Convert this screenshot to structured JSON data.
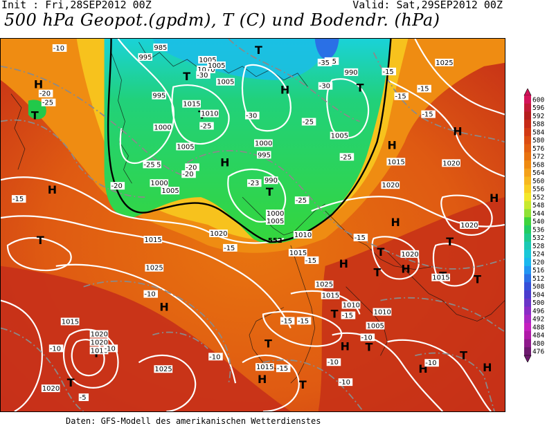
{
  "header": {
    "init": "Init : Fri,28SEP2012 00Z",
    "valid": "Valid: Sat,29SEP2012 00Z",
    "title": "500 hPa Geopot.(gpdm), T (C) und Bodendr. (hPa)"
  },
  "footer": {
    "credit": "Daten: GFS-Modell des amerikanischen Wetterdienstes"
  },
  "legend": {
    "levels": [
      "600",
      "596",
      "592",
      "588",
      "584",
      "580",
      "576",
      "572",
      "568",
      "564",
      "560",
      "556",
      "552",
      "548",
      "544",
      "540",
      "536",
      "532",
      "528",
      "524",
      "520",
      "516",
      "512",
      "508",
      "504",
      "500",
      "496",
      "492",
      "488",
      "484",
      "480",
      "476"
    ],
    "colors": [
      "#d4145a",
      "#c21a36",
      "#b51e1e",
      "#c62b17",
      "#d23a14",
      "#dc4d12",
      "#e35f10",
      "#e8720f",
      "#ef8a10",
      "#f4a11a",
      "#f7b81f",
      "#f9cf22",
      "#f3e82b",
      "#c7e930",
      "#8fe236",
      "#3fd43c",
      "#22cc62",
      "#1ecb8b",
      "#1bc9b4",
      "#1ac8d8",
      "#1ab8ee",
      "#2196f3",
      "#2a70e6",
      "#3550d8",
      "#4a3ccd",
      "#6a35c8",
      "#8b2cc6",
      "#a927c4",
      "#c420bf",
      "#b01aa8",
      "#8f1a8c",
      "#6d1a6e"
    ]
  },
  "map_labels": {
    "isobars": [
      "985",
      "995",
      "1005",
      "1010",
      "1005",
      "990",
      "995",
      "1005",
      "1015",
      "1000",
      "1005",
      "1010",
      "1025",
      "1005",
      "995",
      "1000",
      "1005",
      "1015",
      "1020",
      "1000",
      "995",
      "990",
      "1000",
      "1005",
      "1010",
      "1020",
      "1015",
      "1025",
      "1020",
      "1020",
      "1015",
      "1025",
      "1015",
      "1010",
      "1020",
      "1015",
      "1010",
      "1005",
      "1015",
      "1020",
      "1020",
      "1010",
      "1025",
      "1015",
      "1020"
    ],
    "temps": [
      "-10",
      "-20",
      "-25",
      "-35",
      "-30",
      "-15",
      "-35",
      "-30",
      "-25",
      "-15",
      "-30",
      "-25",
      "-20",
      "-25",
      "-20",
      "-15",
      "-15",
      "-15",
      "-20",
      "-25",
      "-15",
      "-25",
      "-23",
      "-10",
      "-15",
      "-15",
      "-15",
      "-10",
      "-10",
      "-10",
      "-15",
      "-10",
      "-15",
      "-15",
      "-10",
      "-10",
      "-10",
      "-5"
    ],
    "highs": [
      "H",
      "H",
      "H",
      "H",
      "H",
      "H",
      "H",
      "H",
      "H",
      "H",
      "H",
      "H",
      "H",
      "H",
      "H"
    ],
    "lows": [
      "T",
      "T",
      "T",
      "T",
      "T",
      "T",
      "T",
      "T",
      "T",
      "T",
      "T",
      "T",
      "T",
      "T",
      "T",
      "T",
      "T",
      "T",
      "T"
    ],
    "frontal_label": "552"
  }
}
